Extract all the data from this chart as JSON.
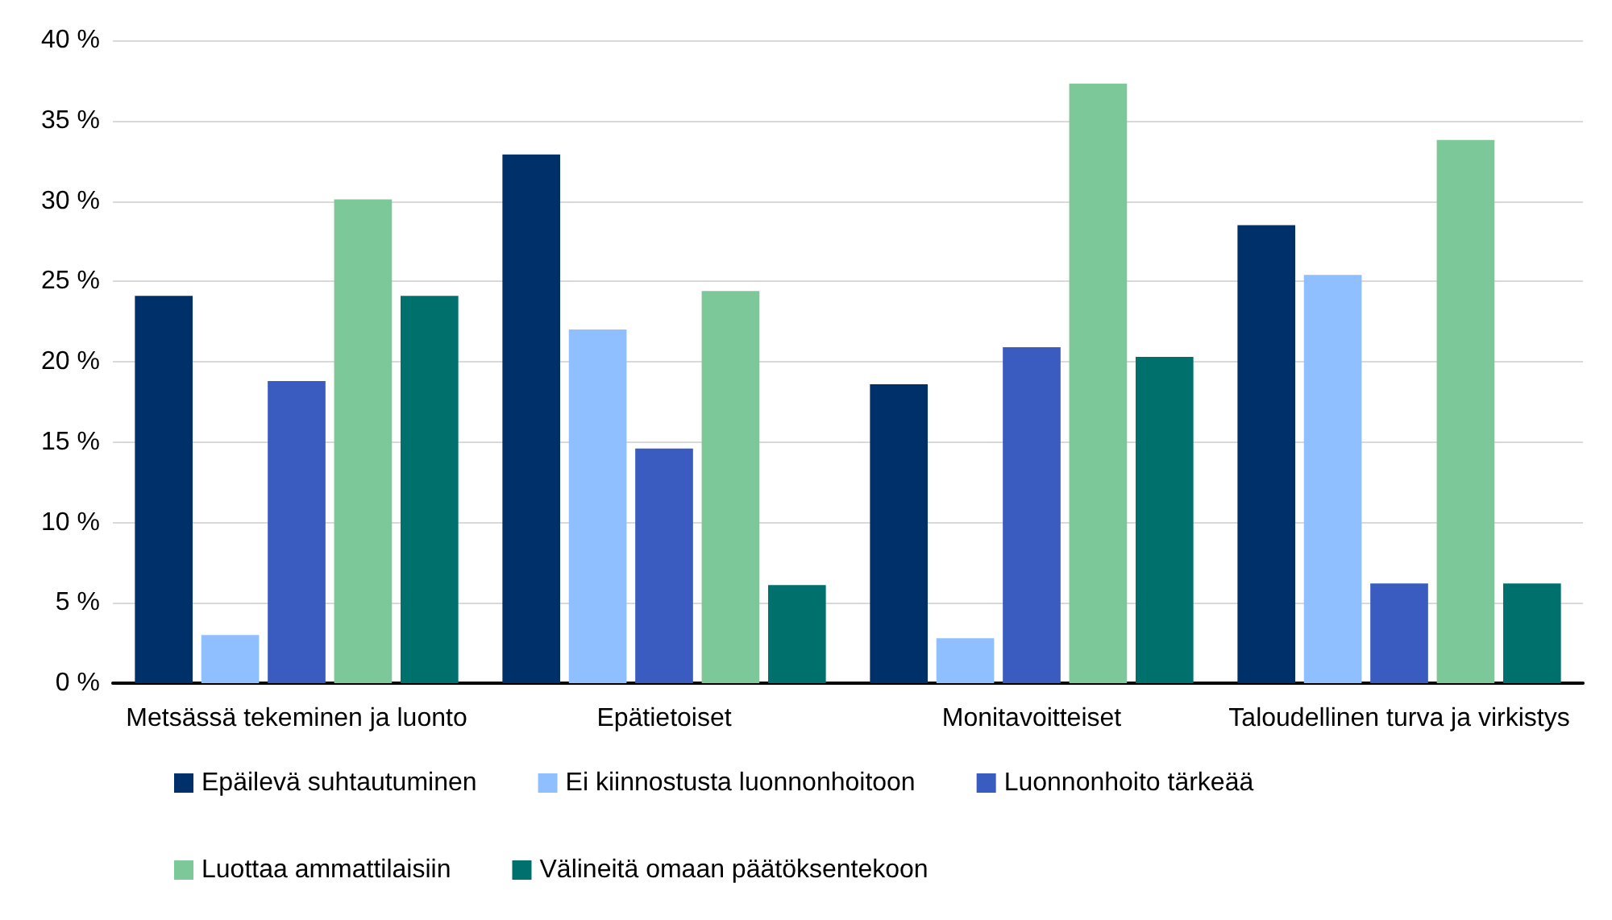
{
  "chart_data": {
    "type": "bar",
    "categories": [
      "Metsässä tekeminen ja luonto",
      "Epätietoiset",
      "Monitavoitteiset",
      "Taloudellinen turva ja virkistys"
    ],
    "series": [
      {
        "name": "Epäilevä suhtautuminen",
        "color": "#003069",
        "values": [
          24.1,
          32.9,
          18.6,
          28.5
        ]
      },
      {
        "name": "Ei kiinnostusta luonnonhoitoon",
        "color": "#8fbfff",
        "values": [
          3.0,
          22.0,
          2.8,
          25.4
        ]
      },
      {
        "name": "Luonnonhoito tärkeää",
        "color": "#3a5bbf",
        "values": [
          18.8,
          14.6,
          20.9,
          6.2
        ]
      },
      {
        "name": "Luottaa ammattilaisiin",
        "color": "#7dc899",
        "values": [
          30.1,
          24.4,
          37.3,
          33.8
        ]
      },
      {
        "name": "Välineitä omaan päätöksentekoon",
        "color": "#00706d",
        "values": [
          24.1,
          6.1,
          20.3,
          6.2
        ]
      }
    ],
    "ylim": [
      0,
      40
    ],
    "yticks": [
      {
        "value": 0,
        "label": "0 %"
      },
      {
        "value": 5,
        "label": "5 %"
      },
      {
        "value": 10,
        "label": "10 %"
      },
      {
        "value": 15,
        "label": "15 %"
      },
      {
        "value": 20,
        "label": "20 %"
      },
      {
        "value": 25,
        "label": "25 %"
      },
      {
        "value": 30,
        "label": "30 %"
      },
      {
        "value": 35,
        "label": "35 %"
      },
      {
        "value": 40,
        "label": "40 %"
      }
    ],
    "grid": "y",
    "legend": "bottom"
  }
}
